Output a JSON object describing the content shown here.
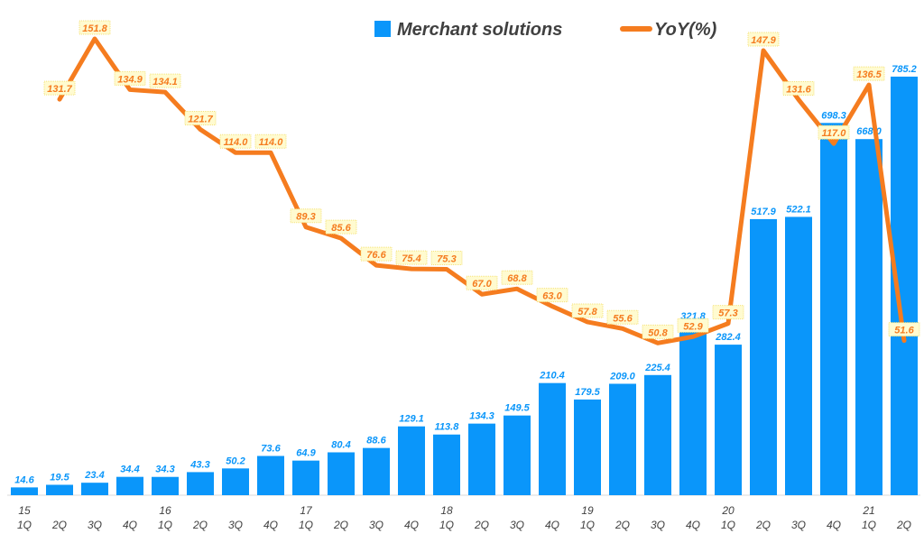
{
  "chart_data": {
    "type": "bar+line",
    "categories": [
      "1Q",
      "2Q",
      "3Q",
      "4Q",
      "1Q",
      "2Q",
      "3Q",
      "4Q",
      "1Q",
      "2Q",
      "3Q",
      "4Q",
      "1Q",
      "2Q",
      "3Q",
      "4Q",
      "1Q",
      "2Q",
      "3Q",
      "4Q",
      "1Q",
      "2Q",
      "3Q",
      "4Q",
      "1Q",
      "2Q"
    ],
    "year_labels": [
      "15",
      "",
      "",
      "",
      "16",
      "",
      "",
      "",
      "17",
      "",
      "",
      "",
      "18",
      "",
      "",
      "",
      "19",
      "",
      "",
      "",
      "20",
      "",
      "",
      "",
      "21",
      ""
    ],
    "series": [
      {
        "name": "Merchant solutions",
        "type": "bar",
        "color": "#0A96FA",
        "values": [
          14.6,
          19.5,
          23.4,
          34.4,
          34.3,
          43.3,
          50.2,
          73.6,
          64.9,
          80.4,
          88.6,
          129.1,
          113.8,
          134.3,
          149.5,
          210.4,
          179.5,
          209.0,
          225.4,
          321.8,
          282.4,
          517.9,
          522.1,
          698.3,
          668.0,
          785.2
        ]
      },
      {
        "name": "YoY(%)",
        "type": "line",
        "color": "#F57C1F",
        "values": [
          null,
          131.7,
          151.8,
          134.9,
          134.1,
          121.7,
          114.0,
          114.0,
          89.3,
          85.6,
          76.6,
          75.4,
          75.3,
          67.0,
          68.8,
          63.0,
          57.8,
          55.6,
          50.8,
          52.9,
          57.3,
          147.9,
          131.6,
          117.0,
          136.5,
          51.6
        ]
      }
    ],
    "legend": "top-center",
    "grid": false
  }
}
